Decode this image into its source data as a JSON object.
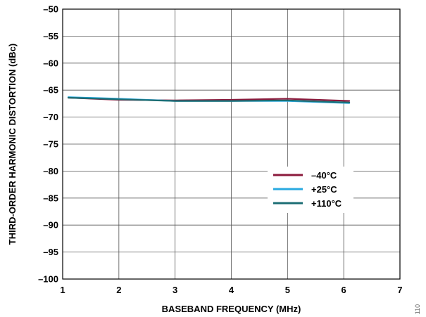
{
  "chart_data": {
    "type": "line",
    "title": "",
    "xlabel": "BASEBAND FREQUENCY (MHz)",
    "ylabel": "THIRD-ORDER HARMONIC DISTORTION (dBc)",
    "xlim": [
      1,
      7
    ],
    "ylim": [
      -100,
      -50
    ],
    "x_ticks": [
      1,
      2,
      3,
      4,
      5,
      6,
      7
    ],
    "x_tick_labels": [
      "1",
      "2",
      "3",
      "4",
      "5",
      "6",
      "7"
    ],
    "y_ticks": [
      -50,
      -55,
      -60,
      -65,
      -70,
      -75,
      -80,
      -85,
      -90,
      -95,
      -100
    ],
    "y_tick_labels": [
      "–50",
      "–55",
      "–60",
      "–65",
      "–70",
      "–75",
      "–80",
      "–85",
      "–90",
      "–95",
      "–100"
    ],
    "grid": true,
    "legend_position": "lower-right",
    "series": [
      {
        "name": "–40°C",
        "color": "#8B1A3C",
        "x": [
          1.1,
          2,
          3,
          4,
          5,
          6.1
        ],
        "y": [
          -66.4,
          -66.8,
          -66.9,
          -66.8,
          -66.6,
          -67.0
        ]
      },
      {
        "name": "+25°C",
        "color": "#29A9E0",
        "x": [
          1.1,
          2,
          3,
          4,
          5,
          6.1
        ],
        "y": [
          -66.3,
          -66.6,
          -67.0,
          -67.0,
          -67.0,
          -67.4
        ]
      },
      {
        "name": "+110°C",
        "color": "#1C6E74",
        "x": [
          1.1,
          2,
          3,
          4,
          5,
          6.1
        ],
        "y": [
          -66.4,
          -66.7,
          -67.0,
          -67.0,
          -66.9,
          -67.3
        ]
      }
    ]
  },
  "figure_id": "110"
}
